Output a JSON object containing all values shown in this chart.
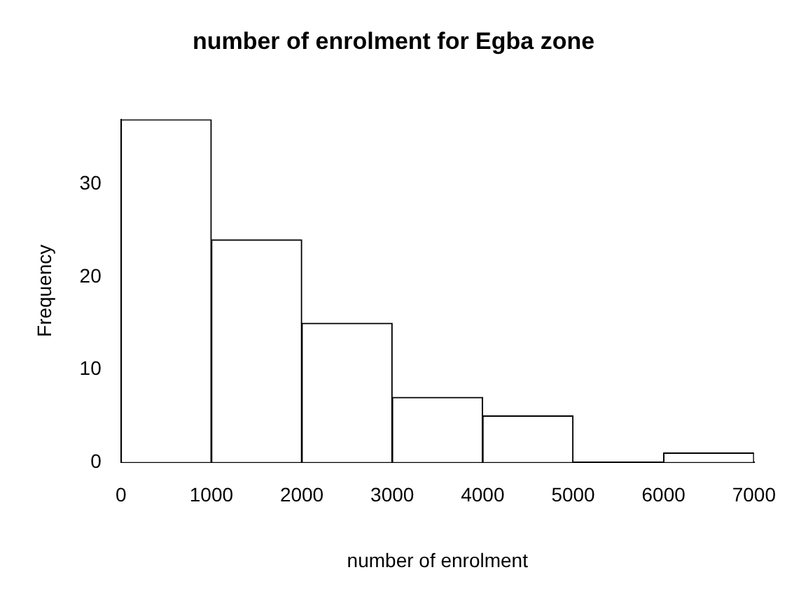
{
  "chart_data": {
    "type": "histogram",
    "title": "number of enrolment for Egba zone",
    "xlabel": "number of enrolment",
    "ylabel": "Frequency",
    "bins": [
      0,
      1000,
      2000,
      3000,
      4000,
      5000,
      6000,
      7000
    ],
    "values": [
      37,
      24,
      15,
      7,
      5,
      0,
      1
    ],
    "color": "#ffffff",
    "xlim": [
      0,
      7000
    ],
    "xticks": [
      0,
      1000,
      2000,
      3000,
      4000,
      5000,
      6000,
      7000
    ],
    "ylim": [
      0,
      37
    ],
    "yticks": [
      0,
      10,
      20,
      30
    ]
  }
}
